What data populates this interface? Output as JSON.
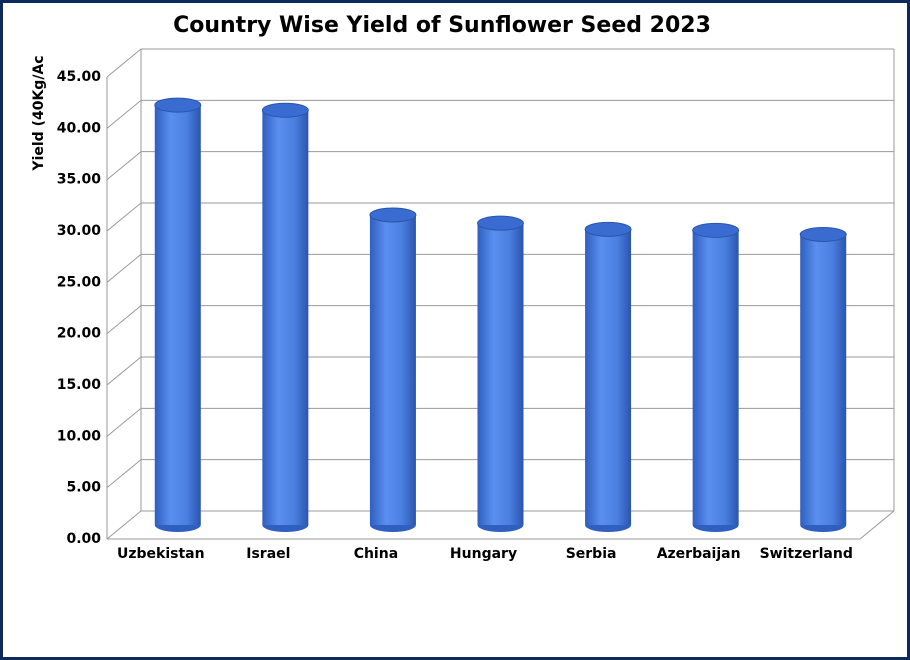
{
  "chart_data": {
    "type": "bar3d",
    "title": "Country Wise Yield of Sunflower Seed 2023",
    "y_label": "Yield (40Kg/Ac",
    "categories": [
      "Uzbekistan",
      "Israel",
      "China",
      "Hungary",
      "Serbia",
      "Azerbaijan",
      "Switzerland"
    ],
    "values": [
      40.9,
      40.4,
      30.2,
      29.4,
      28.8,
      28.7,
      28.3
    ],
    "color": "#4a7fe0",
    "ylim": [
      0,
      45
    ],
    "yticks": [
      {
        "value": 0,
        "label": "0.00"
      },
      {
        "value": 5,
        "label": "5.00"
      },
      {
        "value": 10,
        "label": "10.00"
      },
      {
        "value": 15,
        "label": "15.00"
      },
      {
        "value": 20,
        "label": "20.00"
      },
      {
        "value": 25,
        "label": "25.00"
      },
      {
        "value": 30,
        "label": "30.00"
      },
      {
        "value": 35,
        "label": "35.00"
      },
      {
        "value": 40,
        "label": "40.00"
      },
      {
        "value": 45,
        "label": "45.00"
      }
    ],
    "grid": true
  }
}
